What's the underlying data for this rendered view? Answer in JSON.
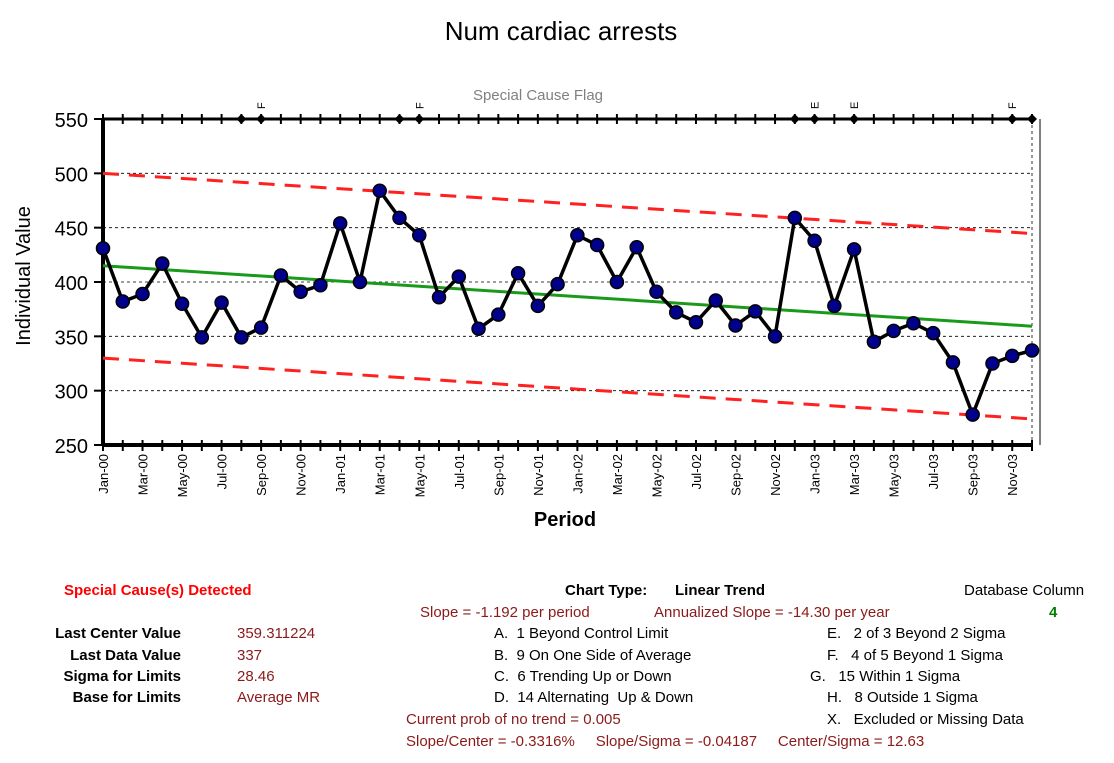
{
  "chart_data": {
    "type": "line",
    "title": "Num cardiac arrests",
    "subtitle": "Special Cause Flag",
    "xlabel": "Period",
    "ylabel": "Individual Value",
    "ylim": [
      250,
      550
    ],
    "yticks": [
      550,
      500,
      450,
      400,
      350,
      300,
      250
    ],
    "grid": true,
    "x": [
      "Jan-00",
      "Feb-00",
      "Mar-00",
      "Apr-00",
      "May-00",
      "Jun-00",
      "Jul-00",
      "Aug-00",
      "Sep-00",
      "Oct-00",
      "Nov-00",
      "Dec-00",
      "Jan-01",
      "Feb-01",
      "Mar-01",
      "Apr-01",
      "May-01",
      "Jun-01",
      "Jul-01",
      "Aug-01",
      "Sep-01",
      "Oct-01",
      "Nov-01",
      "Dec-01",
      "Jan-02",
      "Feb-02",
      "Mar-02",
      "Apr-02",
      "May-02",
      "Jun-02",
      "Jul-02",
      "Aug-02",
      "Sep-02",
      "Oct-02",
      "Nov-02",
      "Dec-02",
      "Jan-03",
      "Feb-03",
      "Mar-03",
      "Apr-03",
      "May-03",
      "Jun-03",
      "Jul-03",
      "Aug-03",
      "Sep-03",
      "Oct-03",
      "Nov-03",
      "Dec-03"
    ],
    "xtick_labels": [
      "Jan-00",
      "Mar-00",
      "May-00",
      "Jul-00",
      "Sep-00",
      "Nov-00",
      "Jan-01",
      "Mar-01",
      "May-01",
      "Jul-01",
      "Sep-01",
      "Nov-01",
      "Jan-02",
      "Mar-02",
      "May-02",
      "Jul-02",
      "Sep-02",
      "Nov-02",
      "Jan-03",
      "Mar-03",
      "May-03",
      "Jul-03",
      "Sep-03",
      "Nov-03"
    ],
    "series": [
      {
        "values": [
          431,
          382,
          389,
          417,
          380,
          349,
          381,
          349,
          358,
          406,
          391,
          397,
          454,
          400,
          484,
          459,
          443,
          386,
          405,
          357,
          370,
          408,
          378,
          398,
          443,
          434,
          400,
          432,
          391,
          372,
          363,
          383,
          360,
          373,
          350,
          459,
          438,
          378,
          430,
          345,
          355,
          362,
          353,
          326,
          278,
          325,
          332,
          337
        ]
      },
      {
        "values_start": 415,
        "values_end": 359.311224
      },
      {
        "values_start": 500,
        "values_end": 444.6
      },
      {
        "values_start": 330,
        "values_end": 274.0
      }
    ],
    "special_cause_flags": [
      {
        "period": "Sep-00",
        "code": "F"
      },
      {
        "period": "May-01",
        "code": "F"
      },
      {
        "period": "Jan-03",
        "code": "E"
      },
      {
        "period": "Mar-03",
        "code": "E"
      },
      {
        "period": "Nov-03",
        "code": "F"
      }
    ],
    "flag_markers": [
      "Aug-00",
      "Sep-00",
      "Apr-01",
      "May-01",
      "Dec-02",
      "Jan-03",
      "Mar-03",
      "Nov-03",
      "Dec-03"
    ]
  },
  "colors": {
    "data_line": "#000000",
    "data_marker": "#00008b",
    "center_line": "#1a9a1a",
    "limit_line": "#ff2020",
    "grid": "#000000"
  },
  "footer": {
    "special_cause": "Special Cause(s) Detected",
    "chart_type_label": "Chart Type:",
    "chart_type_value": "Linear Trend",
    "database_column_label": "Database Column",
    "database_column_value": "4",
    "slope": "Slope = -1.192 per period",
    "annualized_slope": "Annualized Slope = -14.30 per year",
    "stats": [
      {
        "label": "Last Center Value",
        "value": "359.311224"
      },
      {
        "label": "Last Data Value",
        "value": "337"
      },
      {
        "label": "Sigma for Limits",
        "value": "28.46"
      },
      {
        "label": "Base for Limits",
        "value": "Average MR"
      }
    ],
    "rules_left": [
      "A.  1 Beyond Control Limit",
      "B.  9 On One Side of Average",
      "C.  6 Trending Up or Down",
      "D.  14 Alternating  Up & Down"
    ],
    "rules_right": [
      "E.   2 of 3 Beyond 2 Sigma",
      "F.   4 of 5 Beyond 1 Sigma",
      "G.   15 Within 1 Sigma",
      "H.   8 Outside 1 Sigma",
      "X.   Excluded or Missing Data"
    ],
    "prob_no_trend": "Current prob of no trend = 0.005",
    "ratios": "Slope/Center = -0.3316%     Slope/Sigma = -0.04187     Center/Sigma = 12.63"
  }
}
